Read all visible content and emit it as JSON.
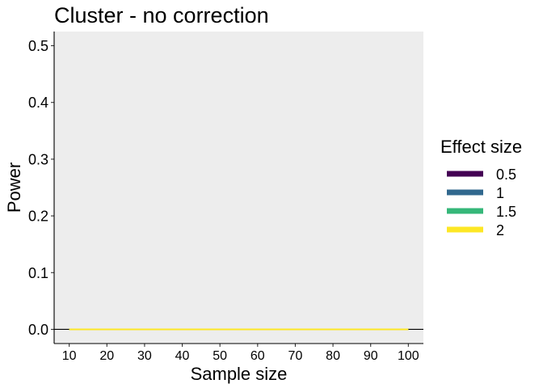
{
  "chart_data": {
    "type": "line",
    "title": "Cluster - no correction",
    "xlabel": "Sample size",
    "ylabel": "Power",
    "x": [
      10,
      20,
      30,
      40,
      50,
      60,
      70,
      80,
      90,
      100
    ],
    "xlim": [
      6,
      104
    ],
    "ylim": [
      -0.025,
      0.525
    ],
    "x_ticks": [
      "10",
      "20",
      "30",
      "40",
      "50",
      "60",
      "70",
      "80",
      "90",
      "100"
    ],
    "y_ticks": [
      "0.0",
      "0.1",
      "0.2",
      "0.3",
      "0.4",
      "0.5"
    ],
    "hline_y": 0,
    "legend": {
      "title": "Effect size",
      "position": "right"
    },
    "series": [
      {
        "name": "0.5",
        "color": "#440154",
        "values": [
          0,
          0,
          0,
          0,
          0,
          0,
          0,
          0,
          0,
          0
        ]
      },
      {
        "name": "1",
        "color": "#31688E",
        "values": [
          0,
          0,
          0,
          0,
          0,
          0,
          0,
          0,
          0,
          0
        ]
      },
      {
        "name": "1.5",
        "color": "#35B779",
        "values": [
          0,
          0,
          0,
          0,
          0,
          0,
          0,
          0,
          0,
          0
        ]
      },
      {
        "name": "2",
        "color": "#FDE725",
        "values": [
          0,
          0,
          0,
          0,
          0,
          0,
          0,
          0,
          0,
          0
        ]
      }
    ],
    "panel_background": "#EDEDED",
    "grid": false
  }
}
